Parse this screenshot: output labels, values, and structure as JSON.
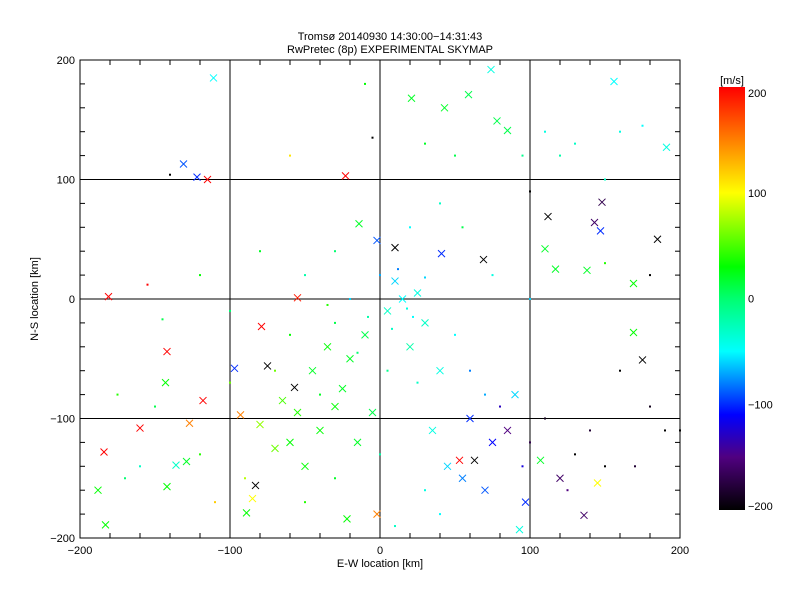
{
  "chart_data": {
    "type": "scatter",
    "title": "Tromsø 20140930 14:30:00−14:31:43",
    "subtitle": "RwPretec (8p) EXPERIMENTAL SKYMAP",
    "xlabel": "E-W location [km]",
    "ylabel": "N-S location [km]",
    "xlim": [
      -200,
      200
    ],
    "ylim": [
      -200,
      200
    ],
    "grid": true,
    "x_ticks": [
      "−200",
      "−100",
      "0",
      "100",
      "200"
    ],
    "y_ticks": [
      "−200",
      "−100",
      "0",
      "100",
      "200"
    ],
    "x_tick_values": [
      -200,
      -100,
      0,
      100,
      200
    ],
    "y_tick_values": [
      -200,
      -100,
      0,
      100,
      200
    ],
    "colorbar": {
      "label": "[m/s]",
      "range": [
        -200,
        200
      ],
      "ticks": [
        "200",
        "100",
        "0",
        "−100",
        "−200"
      ],
      "tick_values": [
        200,
        100,
        0,
        -100,
        -200
      ],
      "colorscale": [
        [
          -200,
          "#000000"
        ],
        [
          -150,
          "#500080"
        ],
        [
          -110,
          "#0000ff"
        ],
        [
          -50,
          "#00ffff"
        ],
        [
          0,
          "#00ff70"
        ],
        [
          30,
          "#00ff00"
        ],
        [
          100,
          "#ffff00"
        ],
        [
          140,
          "#ff9900"
        ],
        [
          200,
          "#ff0000"
        ]
      ]
    },
    "point_fields": [
      "x_km",
      "y_km",
      "velocity_ms",
      "marker(1=cross,0=dot)"
    ],
    "points": [
      [
        -111,
        185,
        -50,
        1
      ],
      [
        -131,
        113,
        -90,
        1
      ],
      [
        -122,
        102,
        -100,
        1
      ],
      [
        -115,
        100,
        200,
        1
      ],
      [
        -23,
        103,
        200,
        1
      ],
      [
        21,
        168,
        20,
        1
      ],
      [
        43,
        160,
        20,
        1
      ],
      [
        59,
        171,
        10,
        1
      ],
      [
        78,
        149,
        10,
        1
      ],
      [
        85,
        141,
        10,
        1
      ],
      [
        74,
        192,
        -40,
        1
      ],
      [
        156,
        182,
        -50,
        1
      ],
      [
        191,
        127,
        -40,
        1
      ],
      [
        112,
        69,
        -200,
        1
      ],
      [
        148,
        81,
        -170,
        1
      ],
      [
        143,
        64,
        -160,
        1
      ],
      [
        185,
        50,
        -200,
        1
      ],
      [
        147,
        57,
        -100,
        1
      ],
      [
        10,
        43,
        -200,
        1
      ],
      [
        69,
        33,
        -200,
        1
      ],
      [
        175,
        -51,
        -200,
        1
      ],
      [
        -181,
        2,
        200,
        1
      ],
      [
        -79,
        -23,
        200,
        1
      ],
      [
        -55,
        1,
        190,
        1
      ],
      [
        -142,
        -44,
        200,
        1
      ],
      [
        -143,
        -70,
        30,
        1
      ],
      [
        -97,
        -58,
        -100,
        1
      ],
      [
        -75,
        -56,
        -200,
        1
      ],
      [
        -118,
        -85,
        200,
        1
      ],
      [
        -127,
        -104,
        150,
        1
      ],
      [
        -93,
        -97,
        150,
        1
      ],
      [
        -160,
        -108,
        200,
        1
      ],
      [
        -184,
        -128,
        200,
        1
      ],
      [
        -188,
        -160,
        30,
        1
      ],
      [
        -183,
        -189,
        30,
        1
      ],
      [
        -136,
        -139,
        -30,
        1
      ],
      [
        -129,
        -136,
        20,
        1
      ],
      [
        -142,
        -157,
        30,
        1
      ],
      [
        -83,
        -156,
        -200,
        1
      ],
      [
        -57,
        -74,
        -200,
        1
      ],
      [
        -22,
        -184,
        30,
        1
      ],
      [
        -2,
        -180,
        150,
        1
      ],
      [
        53,
        -135,
        200,
        1
      ],
      [
        63,
        -135,
        -200,
        1
      ],
      [
        136,
        -181,
        -160,
        1
      ],
      [
        145,
        -154,
        100,
        1
      ],
      [
        93,
        -193,
        -40,
        1
      ],
      [
        97,
        -170,
        -100,
        1
      ],
      [
        107,
        -135,
        20,
        1
      ],
      [
        169,
        13,
        30,
        1
      ],
      [
        169,
        -28,
        30,
        1
      ],
      [
        110,
        42,
        20,
        1
      ],
      [
        117,
        25,
        20,
        1
      ],
      [
        138,
        24,
        20,
        1
      ],
      [
        -14,
        63,
        20,
        1
      ],
      [
        -2,
        49,
        -90,
        1
      ],
      [
        41,
        38,
        -100,
        1
      ],
      [
        -85,
        -167,
        100,
        1
      ],
      [
        -89,
        -179,
        30,
        1
      ],
      [
        -60,
        -120,
        30,
        1
      ],
      [
        -40,
        -110,
        30,
        1
      ],
      [
        -30,
        -90,
        30,
        1
      ],
      [
        -45,
        -60,
        20,
        1
      ],
      [
        -20,
        -50,
        20,
        1
      ],
      [
        -10,
        -30,
        10,
        1
      ],
      [
        -35,
        -40,
        30,
        1
      ],
      [
        -55,
        -95,
        40,
        1
      ],
      [
        -70,
        -125,
        60,
        1
      ],
      [
        -25,
        -75,
        20,
        1
      ],
      [
        -5,
        -95,
        10,
        1
      ],
      [
        -15,
        -120,
        20,
        1
      ],
      [
        -50,
        -140,
        30,
        1
      ],
      [
        -65,
        -85,
        50,
        1
      ],
      [
        -80,
        -105,
        70,
        1
      ],
      [
        5,
        -10,
        -30,
        1
      ],
      [
        15,
        0,
        -50,
        1
      ],
      [
        25,
        5,
        -40,
        1
      ],
      [
        10,
        15,
        -60,
        1
      ],
      [
        30,
        -20,
        -30,
        1
      ],
      [
        20,
        -40,
        -20,
        1
      ],
      [
        40,
        -60,
        -40,
        1
      ],
      [
        60,
        -100,
        -100,
        1
      ],
      [
        75,
        -120,
        -110,
        1
      ],
      [
        55,
        -150,
        -80,
        1
      ],
      [
        85,
        -110,
        -150,
        1
      ],
      [
        70,
        -160,
        -90,
        1
      ],
      [
        45,
        -140,
        -60,
        1
      ],
      [
        35,
        -110,
        -40,
        1
      ],
      [
        90,
        -80,
        -60,
        1
      ],
      [
        120,
        -150,
        -160,
        1
      ],
      [
        -20,
        0,
        -60,
        0
      ],
      [
        0,
        20,
        -70,
        0
      ],
      [
        12,
        25,
        -80,
        0
      ],
      [
        30,
        18,
        -60,
        0
      ],
      [
        -8,
        -15,
        -20,
        0
      ],
      [
        18,
        -8,
        -40,
        0
      ],
      [
        -30,
        -20,
        10,
        0
      ],
      [
        -15,
        -45,
        0,
        0
      ],
      [
        5,
        -60,
        -10,
        0
      ],
      [
        25,
        -70,
        -30,
        0
      ],
      [
        -40,
        -80,
        20,
        0
      ],
      [
        50,
        -30,
        -50,
        0
      ],
      [
        60,
        -60,
        -80,
        0
      ],
      [
        80,
        -90,
        -130,
        0
      ],
      [
        100,
        -120,
        -170,
        0
      ],
      [
        110,
        -100,
        -190,
        0
      ],
      [
        130,
        -130,
        -200,
        0
      ],
      [
        140,
        -110,
        -180,
        0
      ],
      [
        150,
        -140,
        -200,
        0
      ],
      [
        125,
        -160,
        -150,
        0
      ],
      [
        95,
        -140,
        -120,
        0
      ],
      [
        70,
        -80,
        -70,
        0
      ],
      [
        -60,
        -30,
        30,
        0
      ],
      [
        -100,
        -70,
        60,
        0
      ],
      [
        -120,
        -130,
        40,
        0
      ],
      [
        -150,
        -90,
        10,
        0
      ],
      [
        -170,
        -150,
        0,
        0
      ],
      [
        -90,
        -150,
        80,
        0
      ],
      [
        -110,
        -170,
        120,
        0
      ],
      [
        -30,
        -150,
        20,
        0
      ],
      [
        0,
        -130,
        -20,
        0
      ],
      [
        30,
        -160,
        -40,
        0
      ],
      [
        40,
        -180,
        -50,
        0
      ],
      [
        10,
        -190,
        -30,
        0
      ],
      [
        -50,
        -170,
        40,
        0
      ],
      [
        160,
        -60,
        -200,
        0
      ],
      [
        180,
        -90,
        -190,
        0
      ],
      [
        190,
        -110,
        -200,
        0
      ],
      [
        170,
        -140,
        -180,
        0
      ],
      [
        150,
        100,
        -30,
        0
      ],
      [
        160,
        140,
        -40,
        0
      ],
      [
        175,
        145,
        -50,
        0
      ],
      [
        130,
        130,
        -30,
        0
      ],
      [
        120,
        120,
        -20,
        0
      ],
      [
        110,
        140,
        -40,
        0
      ],
      [
        95,
        120,
        -10,
        0
      ],
      [
        50,
        120,
        10,
        0
      ],
      [
        30,
        130,
        20,
        0
      ],
      [
        -5,
        135,
        -200,
        0
      ],
      [
        -10,
        180,
        30,
        0
      ],
      [
        -140,
        104,
        -200,
        0
      ],
      [
        -60,
        120,
        110,
        0
      ],
      [
        -120,
        20,
        30,
        0
      ],
      [
        -145,
        -17,
        10,
        0
      ],
      [
        -155,
        12,
        200,
        0
      ],
      [
        -175,
        -80,
        40,
        0
      ],
      [
        -160,
        -140,
        -30,
        0
      ],
      [
        150,
        30,
        40,
        0
      ],
      [
        180,
        20,
        -200,
        0
      ],
      [
        200,
        -110,
        -200,
        0
      ],
      [
        100,
        90,
        -200,
        0
      ],
      [
        100,
        0,
        -60,
        0
      ],
      [
        75,
        20,
        -40,
        0
      ],
      [
        55,
        60,
        10,
        0
      ],
      [
        40,
        80,
        -30,
        0
      ],
      [
        20,
        60,
        -50,
        0
      ],
      [
        -30,
        40,
        0,
        0
      ],
      [
        -50,
        20,
        -20,
        0
      ],
      [
        -80,
        40,
        20,
        0
      ],
      [
        -100,
        -10,
        0,
        0
      ],
      [
        -70,
        -60,
        60,
        0
      ],
      [
        -35,
        -5,
        40,
        0
      ],
      [
        8,
        -25,
        -30,
        0
      ],
      [
        22,
        -15,
        -50,
        0
      ]
    ]
  }
}
